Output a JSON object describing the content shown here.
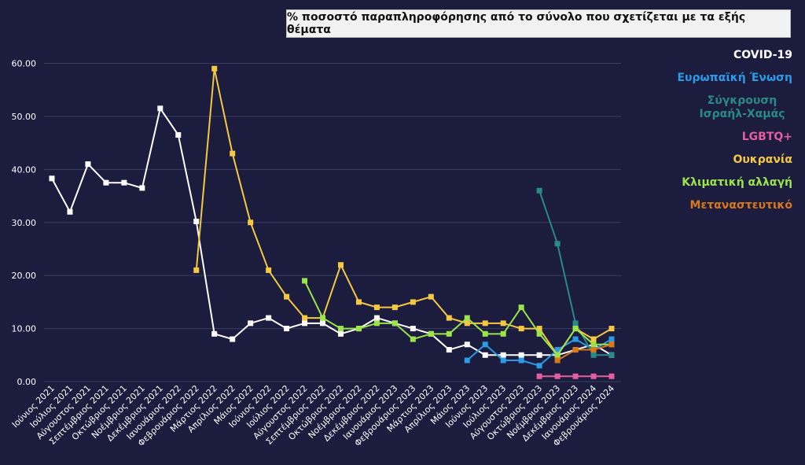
{
  "chart_data": {
    "type": "line",
    "title": "% ποσοστό παραπληροφόρησης από το σύνολο που σχετίζεται με τα εξής θέματα",
    "xlabel": "",
    "ylabel": "",
    "ylim": [
      0,
      60
    ],
    "yticks": [
      "0.00",
      "10.00",
      "20.00",
      "30.00",
      "40.00",
      "50.00",
      "60.00"
    ],
    "grid": true,
    "legend_position": "right",
    "categories": [
      "Ιούνιος 2021",
      "Ιούλιος 2021",
      "Αύγουστος 2021",
      "Σεπτέμβριος 2021",
      "Οκτώβριος 2021",
      "Νοέμβριος 2021",
      "Δεκέμβριος 2021",
      "Ιανουάριος 2022",
      "Φεβρουάριος 2022",
      "Μάρτιος 2022",
      "Απρίλιος 2022",
      "Μάιος 2022",
      "Ιούνιος 2022",
      "Ιούλιος 2022",
      "Αύγουστος 2022",
      "Σεπτέμβριος 2022",
      "Οκτώβριος 2022",
      "Νοέμβριος 2022",
      "Δεκέμβριος 2022",
      "Ιανουάριος 2023",
      "Φεβρουάριος 2023",
      "Μάρτιος 2023",
      "Απρίλιος 2023",
      "Μάιος 2023",
      "Ιούνιος 2023",
      "Ιούλιος 2023",
      "Αύγουστος 2023",
      "Οκτώβριος 2023",
      "Νοέμβριος 2023",
      "Δεκέμβριος 2023",
      "Ιανουάριος 2024",
      "Φεβρουάριος 2024"
    ],
    "series": [
      {
        "name": "COVID-19",
        "color": "#ffffff",
        "values": [
          38.3,
          32,
          41,
          37.5,
          37.5,
          36.5,
          51.5,
          46.5,
          30.2,
          9,
          8,
          11,
          12,
          10,
          11,
          11,
          9,
          10,
          12,
          11,
          10,
          9,
          6,
          7,
          5,
          5,
          5,
          5,
          5,
          6,
          7,
          5
        ]
      },
      {
        "name": "Ευρωπαϊκή Ένωση",
        "color": "#2b9be8",
        "values": [
          null,
          null,
          null,
          null,
          null,
          null,
          null,
          null,
          null,
          null,
          null,
          null,
          null,
          null,
          null,
          null,
          null,
          null,
          null,
          null,
          null,
          null,
          null,
          4,
          7,
          4,
          4,
          3,
          6,
          8,
          6,
          8
        ]
      },
      {
        "name": "Σύγκρουση Ισραήλ-Χαμάς",
        "color": "#2a8a88",
        "values": [
          null,
          null,
          null,
          null,
          null,
          null,
          null,
          null,
          null,
          null,
          null,
          null,
          null,
          null,
          null,
          null,
          null,
          null,
          null,
          null,
          null,
          null,
          null,
          null,
          null,
          null,
          null,
          36,
          26,
          11,
          5,
          5
        ]
      },
      {
        "name": "LGBTQ+",
        "color": "#e35ea0",
        "values": [
          null,
          null,
          null,
          null,
          null,
          null,
          null,
          null,
          null,
          null,
          null,
          null,
          null,
          null,
          null,
          null,
          null,
          null,
          null,
          null,
          null,
          null,
          null,
          null,
          null,
          null,
          null,
          1,
          1,
          1,
          1,
          1
        ]
      },
      {
        "name": "Ουκρανία",
        "color": "#f5c842",
        "values": [
          null,
          null,
          null,
          null,
          null,
          null,
          null,
          null,
          21,
          59,
          43,
          30,
          21,
          16,
          12,
          12,
          22,
          15,
          14,
          14,
          15,
          16,
          12,
          11,
          11,
          11,
          10,
          10,
          5,
          10,
          8,
          10
        ]
      },
      {
        "name": "Κλιματική αλλαγή",
        "color": "#9be54a",
        "values": [
          null,
          null,
          null,
          null,
          null,
          null,
          null,
          null,
          null,
          null,
          null,
          null,
          null,
          null,
          19,
          12,
          10,
          10,
          11,
          11,
          8,
          9,
          9,
          12,
          9,
          9,
          14,
          9,
          5,
          10,
          7,
          7
        ]
      },
      {
        "name": "Μεταναστευτικό",
        "color": "#d9781a",
        "values": [
          null,
          null,
          null,
          null,
          null,
          null,
          null,
          null,
          null,
          null,
          null,
          null,
          null,
          null,
          null,
          null,
          null,
          null,
          null,
          null,
          null,
          null,
          null,
          null,
          null,
          null,
          null,
          null,
          4,
          6,
          6,
          7
        ]
      }
    ]
  },
  "legend": [
    {
      "label": "COVID-19",
      "color": "#ffffff"
    },
    {
      "label": "Ευρωπαϊκή Ένωση",
      "color": "#2b9be8"
    },
    {
      "label": "Σύγκρουση Ισραήλ-Χαμάς",
      "color": "#2a8a88"
    },
    {
      "label": "LGBTQ+",
      "color": "#e35ea0"
    },
    {
      "label": "Ουκρανία",
      "color": "#f5c842"
    },
    {
      "label": "Κλιματική αλλαγή",
      "color": "#9be54a"
    },
    {
      "label": "Μεταναστευτικό",
      "color": "#d9781a"
    }
  ]
}
